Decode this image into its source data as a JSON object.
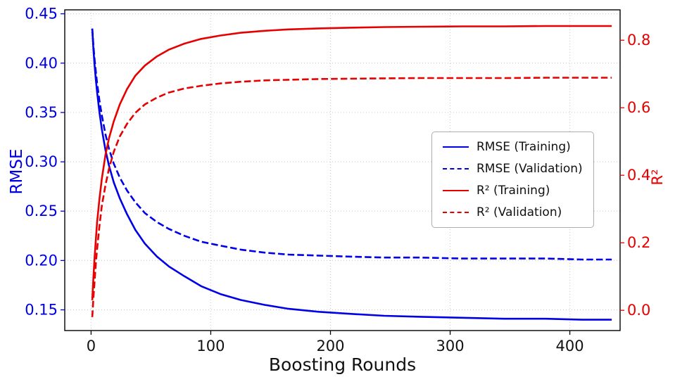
{
  "chart_data": {
    "type": "line",
    "title": "",
    "xlabel": "Boosting Rounds",
    "ylabel_left": "RMSE",
    "ylabel_right": "R²",
    "xlim": [
      -22,
      442
    ],
    "ylim_left": [
      0.129,
      0.454
    ],
    "ylim_right": [
      -0.06,
      0.89
    ],
    "grid": true,
    "legend_position": "center-right",
    "colors": {
      "rmse": "#0000e6",
      "r2": "#e60000",
      "grid": "#c7c7c7",
      "axis": "#000000",
      "tick": "#111111"
    },
    "xticks": {
      "values": [
        0,
        100,
        200,
        300,
        400
      ],
      "labels": [
        "0",
        "100",
        "200",
        "300",
        "400"
      ]
    },
    "yticks_left": {
      "values": [
        0.15,
        0.2,
        0.25,
        0.3,
        0.35,
        0.4,
        0.45
      ],
      "labels": [
        "0.15",
        "0.20",
        "0.25",
        "0.30",
        "0.35",
        "0.40",
        "0.45"
      ]
    },
    "yticks_right": {
      "values": [
        0.0,
        0.2,
        0.4,
        0.6,
        0.8
      ],
      "labels": [
        "0.0",
        "0.2",
        "0.4",
        "0.6",
        "0.8"
      ]
    },
    "series": [
      {
        "name": "RMSE (Training)",
        "axis": "left",
        "style": "solid",
        "color": "#0000e6",
        "x": [
          1,
          2,
          3,
          4,
          5,
          7,
          9,
          12,
          15,
          19,
          24,
          30,
          37,
          45,
          55,
          65,
          78,
          92,
          108,
          125,
          145,
          165,
          190,
          215,
          245,
          275,
          310,
          345,
          380,
          410,
          435
        ],
        "y": [
          0.435,
          0.413,
          0.397,
          0.383,
          0.371,
          0.35,
          0.333,
          0.312,
          0.296,
          0.279,
          0.263,
          0.247,
          0.231,
          0.217,
          0.204,
          0.194,
          0.184,
          0.174,
          0.166,
          0.16,
          0.155,
          0.151,
          0.148,
          0.146,
          0.144,
          0.143,
          0.142,
          0.141,
          0.141,
          0.14,
          0.14
        ]
      },
      {
        "name": "RMSE (Validation)",
        "axis": "left",
        "style": "dashed",
        "color": "#0000e6",
        "x": [
          1,
          2,
          3,
          4,
          5,
          7,
          9,
          12,
          15,
          19,
          24,
          30,
          37,
          45,
          55,
          65,
          78,
          92,
          108,
          125,
          145,
          165,
          190,
          215,
          245,
          275,
          310,
          345,
          380,
          410,
          435
        ],
        "y": [
          0.435,
          0.417,
          0.403,
          0.391,
          0.38,
          0.362,
          0.347,
          0.328,
          0.313,
          0.298,
          0.284,
          0.271,
          0.259,
          0.248,
          0.239,
          0.232,
          0.225,
          0.219,
          0.215,
          0.211,
          0.208,
          0.206,
          0.205,
          0.204,
          0.203,
          0.203,
          0.202,
          0.202,
          0.202,
          0.201,
          0.201
        ]
      },
      {
        "name": "R² (Training)",
        "axis": "right",
        "style": "solid",
        "color": "#e60000",
        "x": [
          1,
          2,
          3,
          4,
          5,
          7,
          9,
          12,
          15,
          19,
          24,
          30,
          37,
          45,
          55,
          65,
          78,
          92,
          108,
          125,
          145,
          165,
          190,
          215,
          245,
          275,
          310,
          345,
          380,
          410,
          435
        ],
        "y": [
          0.03,
          0.1,
          0.16,
          0.21,
          0.26,
          0.33,
          0.39,
          0.46,
          0.51,
          0.56,
          0.61,
          0.655,
          0.695,
          0.725,
          0.752,
          0.772,
          0.79,
          0.804,
          0.814,
          0.822,
          0.828,
          0.832,
          0.835,
          0.837,
          0.839,
          0.84,
          0.841,
          0.841,
          0.842,
          0.842,
          0.842
        ]
      },
      {
        "name": "R² (Validation)",
        "axis": "right",
        "style": "dashed",
        "color": "#e60000",
        "x": [
          1,
          2,
          3,
          4,
          5,
          7,
          9,
          12,
          15,
          19,
          24,
          30,
          37,
          45,
          55,
          65,
          78,
          92,
          108,
          125,
          145,
          165,
          190,
          215,
          245,
          275,
          310,
          345,
          380,
          410,
          435
        ],
        "y": [
          -0.02,
          0.04,
          0.09,
          0.14,
          0.18,
          0.25,
          0.31,
          0.37,
          0.42,
          0.47,
          0.515,
          0.552,
          0.585,
          0.61,
          0.63,
          0.645,
          0.657,
          0.665,
          0.672,
          0.677,
          0.681,
          0.683,
          0.685,
          0.686,
          0.687,
          0.688,
          0.688,
          0.688,
          0.689,
          0.689,
          0.689
        ]
      }
    ]
  }
}
